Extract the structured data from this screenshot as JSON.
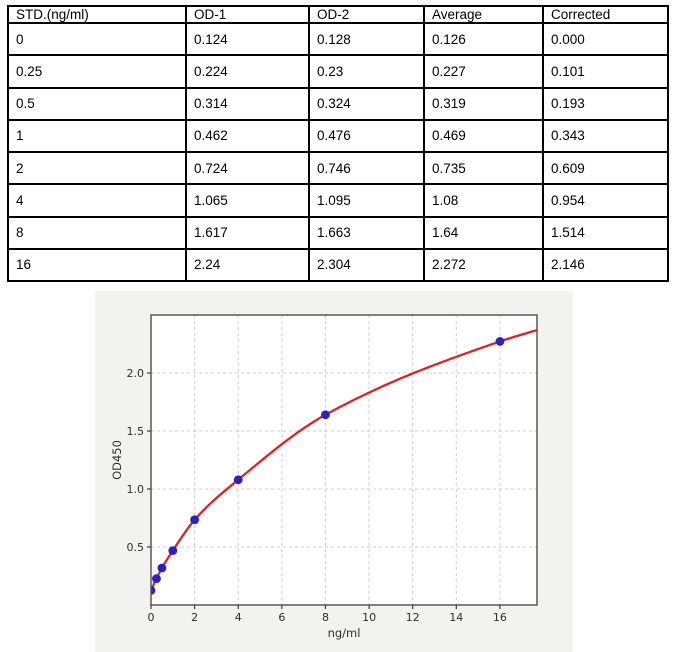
{
  "table": {
    "headers": [
      "STD.(ng/ml)",
      "OD-1",
      "OD-2",
      "Average",
      "Corrected"
    ],
    "rows": [
      [
        "0",
        "0.124",
        "0.128",
        "0.126",
        "0.000"
      ],
      [
        "0.25",
        "0.224",
        "0.23",
        "0.227",
        "0.101"
      ],
      [
        "0.5",
        "0.314",
        "0.324",
        "0.319",
        "0.193"
      ],
      [
        "1",
        "0.462",
        "0.476",
        "0.469",
        "0.343"
      ],
      [
        "2",
        "0.724",
        "0.746",
        "0.735",
        "0.609"
      ],
      [
        "4",
        "1.065",
        "1.095",
        "1.08",
        "0.954"
      ],
      [
        "8",
        "1.617",
        "1.663",
        "1.64",
        "1.514"
      ],
      [
        "16",
        "2.24",
        "2.304",
        "2.272",
        "2.146"
      ]
    ]
  },
  "chart_data": {
    "type": "scatter",
    "title": "",
    "xlabel": "ng/ml",
    "ylabel": "OD450",
    "x": [
      0,
      0.25,
      0.5,
      1,
      2,
      4,
      8,
      16
    ],
    "y": [
      0.126,
      0.227,
      0.319,
      0.469,
      0.735,
      1.08,
      1.64,
      2.272
    ],
    "fit_curve": {
      "type": "smooth-through-points",
      "end_x": 17.7,
      "end_y": 2.37
    },
    "xlim": [
      0,
      17.7
    ],
    "ylim": [
      0,
      2.5
    ],
    "x_ticks": [
      {
        "v": 0,
        "label": "0"
      },
      {
        "v": 2,
        "label": "2"
      },
      {
        "v": 4,
        "label": "4"
      },
      {
        "v": 6,
        "label": "6"
      },
      {
        "v": 8,
        "label": "8"
      },
      {
        "v": 10,
        "label": "10"
      },
      {
        "v": 12,
        "label": "12"
      },
      {
        "v": 14,
        "label": "14"
      },
      {
        "v": 16,
        "label": "16"
      }
    ],
    "y_ticks": [
      {
        "v": 0.5,
        "label": "0.5"
      },
      {
        "v": 1.0,
        "label": "1.0"
      },
      {
        "v": 1.5,
        "label": "1.5"
      },
      {
        "v": 2.0,
        "label": "2.0"
      }
    ],
    "grid": true,
    "legend": "none",
    "colors": {
      "curve": "#dd2222",
      "points": "#2d1fc0",
      "figure_bg": "#f2f2f0",
      "plot_bg": "#ffffff",
      "grid": "#cccccc",
      "axis_border": "#4d4d4d"
    },
    "marker_radius": 4.4
  }
}
